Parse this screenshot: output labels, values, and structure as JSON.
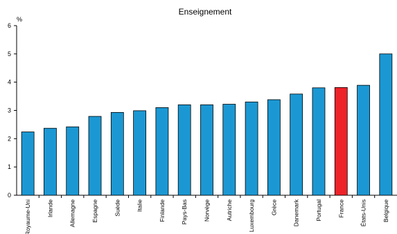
{
  "chart_data": {
    "type": "bar",
    "title": "Enseignement",
    "ylabel": "%",
    "xlabel": "",
    "ylim": [
      0,
      6
    ],
    "yticks": [
      "0",
      "1",
      "2",
      "3",
      "4",
      "5",
      "6"
    ],
    "grid": false,
    "legend": "none",
    "categories": [
      "Royaume-Uni",
      "Irlande",
      "Allemagne",
      "Espagne",
      "Suède",
      "Italie",
      "Finlande",
      "Pays-Bas",
      "Norvège",
      "Autriche",
      "Luxembourg",
      "Grèce",
      "Danemark",
      "Portugal",
      "France",
      "États-Unis",
      "Belgique"
    ],
    "values": [
      2.24,
      2.37,
      2.42,
      2.79,
      2.93,
      2.99,
      3.1,
      3.2,
      3.2,
      3.22,
      3.3,
      3.38,
      3.58,
      3.8,
      3.81,
      3.89,
      5.0
    ],
    "colors": {
      "bar": "#1b98d3",
      "highlight": "#ee2229",
      "highlight_category": "France",
      "bar_outline": "#000000",
      "axis": "#000000"
    }
  }
}
